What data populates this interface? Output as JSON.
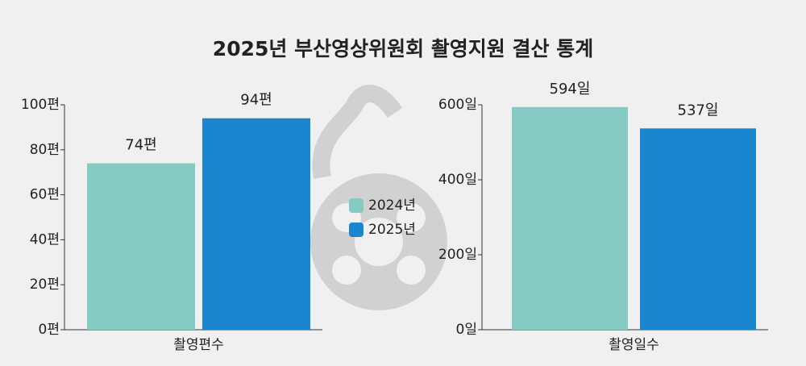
{
  "title": "2025년 부산영상위원회 촬영지원 결산 통계",
  "legend": [
    {
      "name": "2024년",
      "color": "#86cbc3"
    },
    {
      "name": "2025년",
      "color": "#1a86d0"
    }
  ],
  "chart_data": [
    {
      "type": "bar",
      "categories": [
        "촬영편수"
      ],
      "series": [
        {
          "values": [
            74
          ],
          "value_labels": [
            "74편"
          ]
        },
        {
          "values": [
            94
          ],
          "value_labels": [
            "94편"
          ]
        }
      ],
      "ylim": [
        0,
        100
      ],
      "yticks": [
        {
          "value": 0,
          "label": "0편"
        },
        {
          "value": 20,
          "label": "20편"
        },
        {
          "value": 40,
          "label": "40편"
        },
        {
          "value": 60,
          "label": "60편"
        },
        {
          "value": 80,
          "label": "80편"
        },
        {
          "value": 100,
          "label": "100편"
        }
      ]
    },
    {
      "type": "bar",
      "categories": [
        "촬영일수"
      ],
      "series": [
        {
          "values": [
            594
          ],
          "value_labels": [
            "594일"
          ]
        },
        {
          "values": [
            537
          ],
          "value_labels": [
            "537일"
          ]
        }
      ],
      "ylim": [
        0,
        600
      ],
      "yticks": [
        {
          "value": 0,
          "label": "0일"
        },
        {
          "value": 200,
          "label": "200일"
        },
        {
          "value": 400,
          "label": "400일"
        },
        {
          "value": 600,
          "label": "600일"
        }
      ]
    }
  ]
}
